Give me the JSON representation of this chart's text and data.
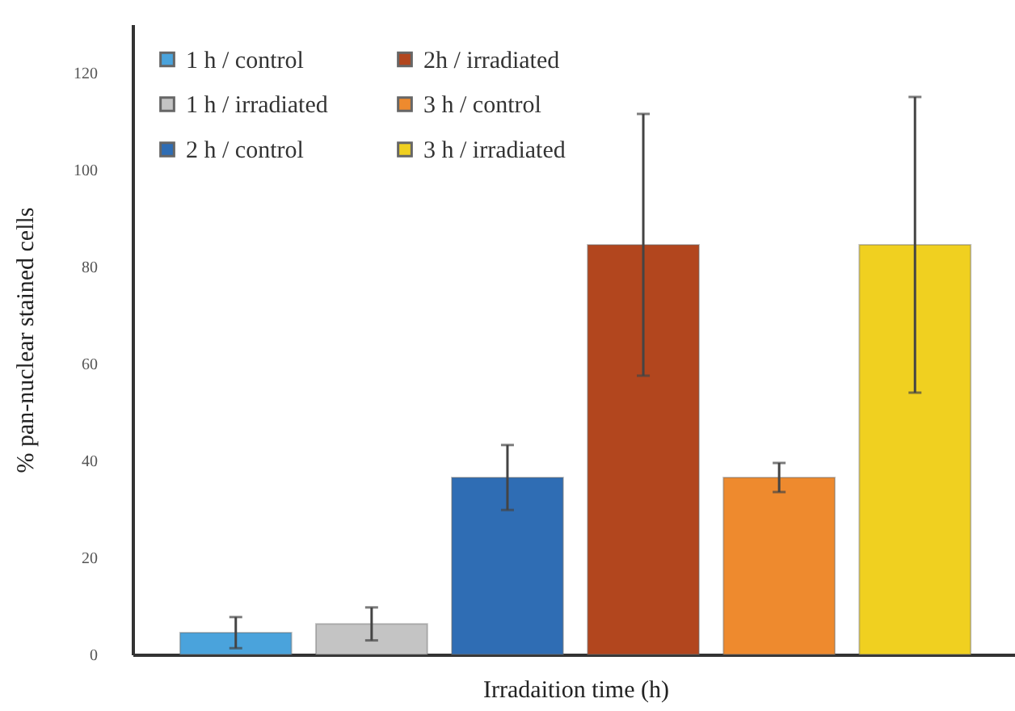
{
  "chart_data": {
    "type": "bar",
    "xlabel": "Irradaition time (h)",
    "ylabel": "% pan-nuclear stained cells",
    "categories": [
      null,
      null,
      null,
      null,
      null,
      null
    ],
    "series": [
      {
        "name": "1 h / control",
        "color": "#4aa3dc",
        "values": [
          4.5,
          null,
          null,
          null,
          null,
          null
        ],
        "errors": [
          3.2,
          null,
          null,
          null,
          null,
          null
        ]
      },
      {
        "name": "1 h / irradiated",
        "color": "#c4c4c4",
        "values": [
          null,
          6.3,
          null,
          null,
          null,
          null
        ],
        "errors": [
          null,
          3.4,
          null,
          null,
          null,
          null
        ]
      },
      {
        "name": "2 h / control",
        "color": "#2f6db4",
        "values": [
          null,
          null,
          36.5,
          null,
          null,
          null
        ],
        "errors": [
          null,
          null,
          6.7,
          null,
          null,
          null
        ]
      },
      {
        "name": "2h / irradiated",
        "color": "#b2461e",
        "values": [
          null,
          null,
          null,
          84.5,
          null,
          null
        ],
        "errors": [
          null,
          null,
          null,
          27,
          null,
          null
        ]
      },
      {
        "name": "3 h / control",
        "color": "#ee8a2e",
        "values": [
          null,
          null,
          null,
          null,
          36.5,
          null
        ],
        "errors": [
          null,
          null,
          null,
          null,
          3,
          null
        ]
      },
      {
        "name": "3 h / irradiated",
        "color": "#f0d020",
        "values": [
          null,
          null,
          null,
          null,
          null,
          84.5
        ],
        "errors": [
          null,
          null,
          null,
          null,
          null,
          30.5
        ]
      }
    ],
    "ylim": [
      0,
      130
    ],
    "yticks": [
      0,
      20,
      40,
      60,
      80,
      100,
      120
    ],
    "legend": "top left"
  }
}
